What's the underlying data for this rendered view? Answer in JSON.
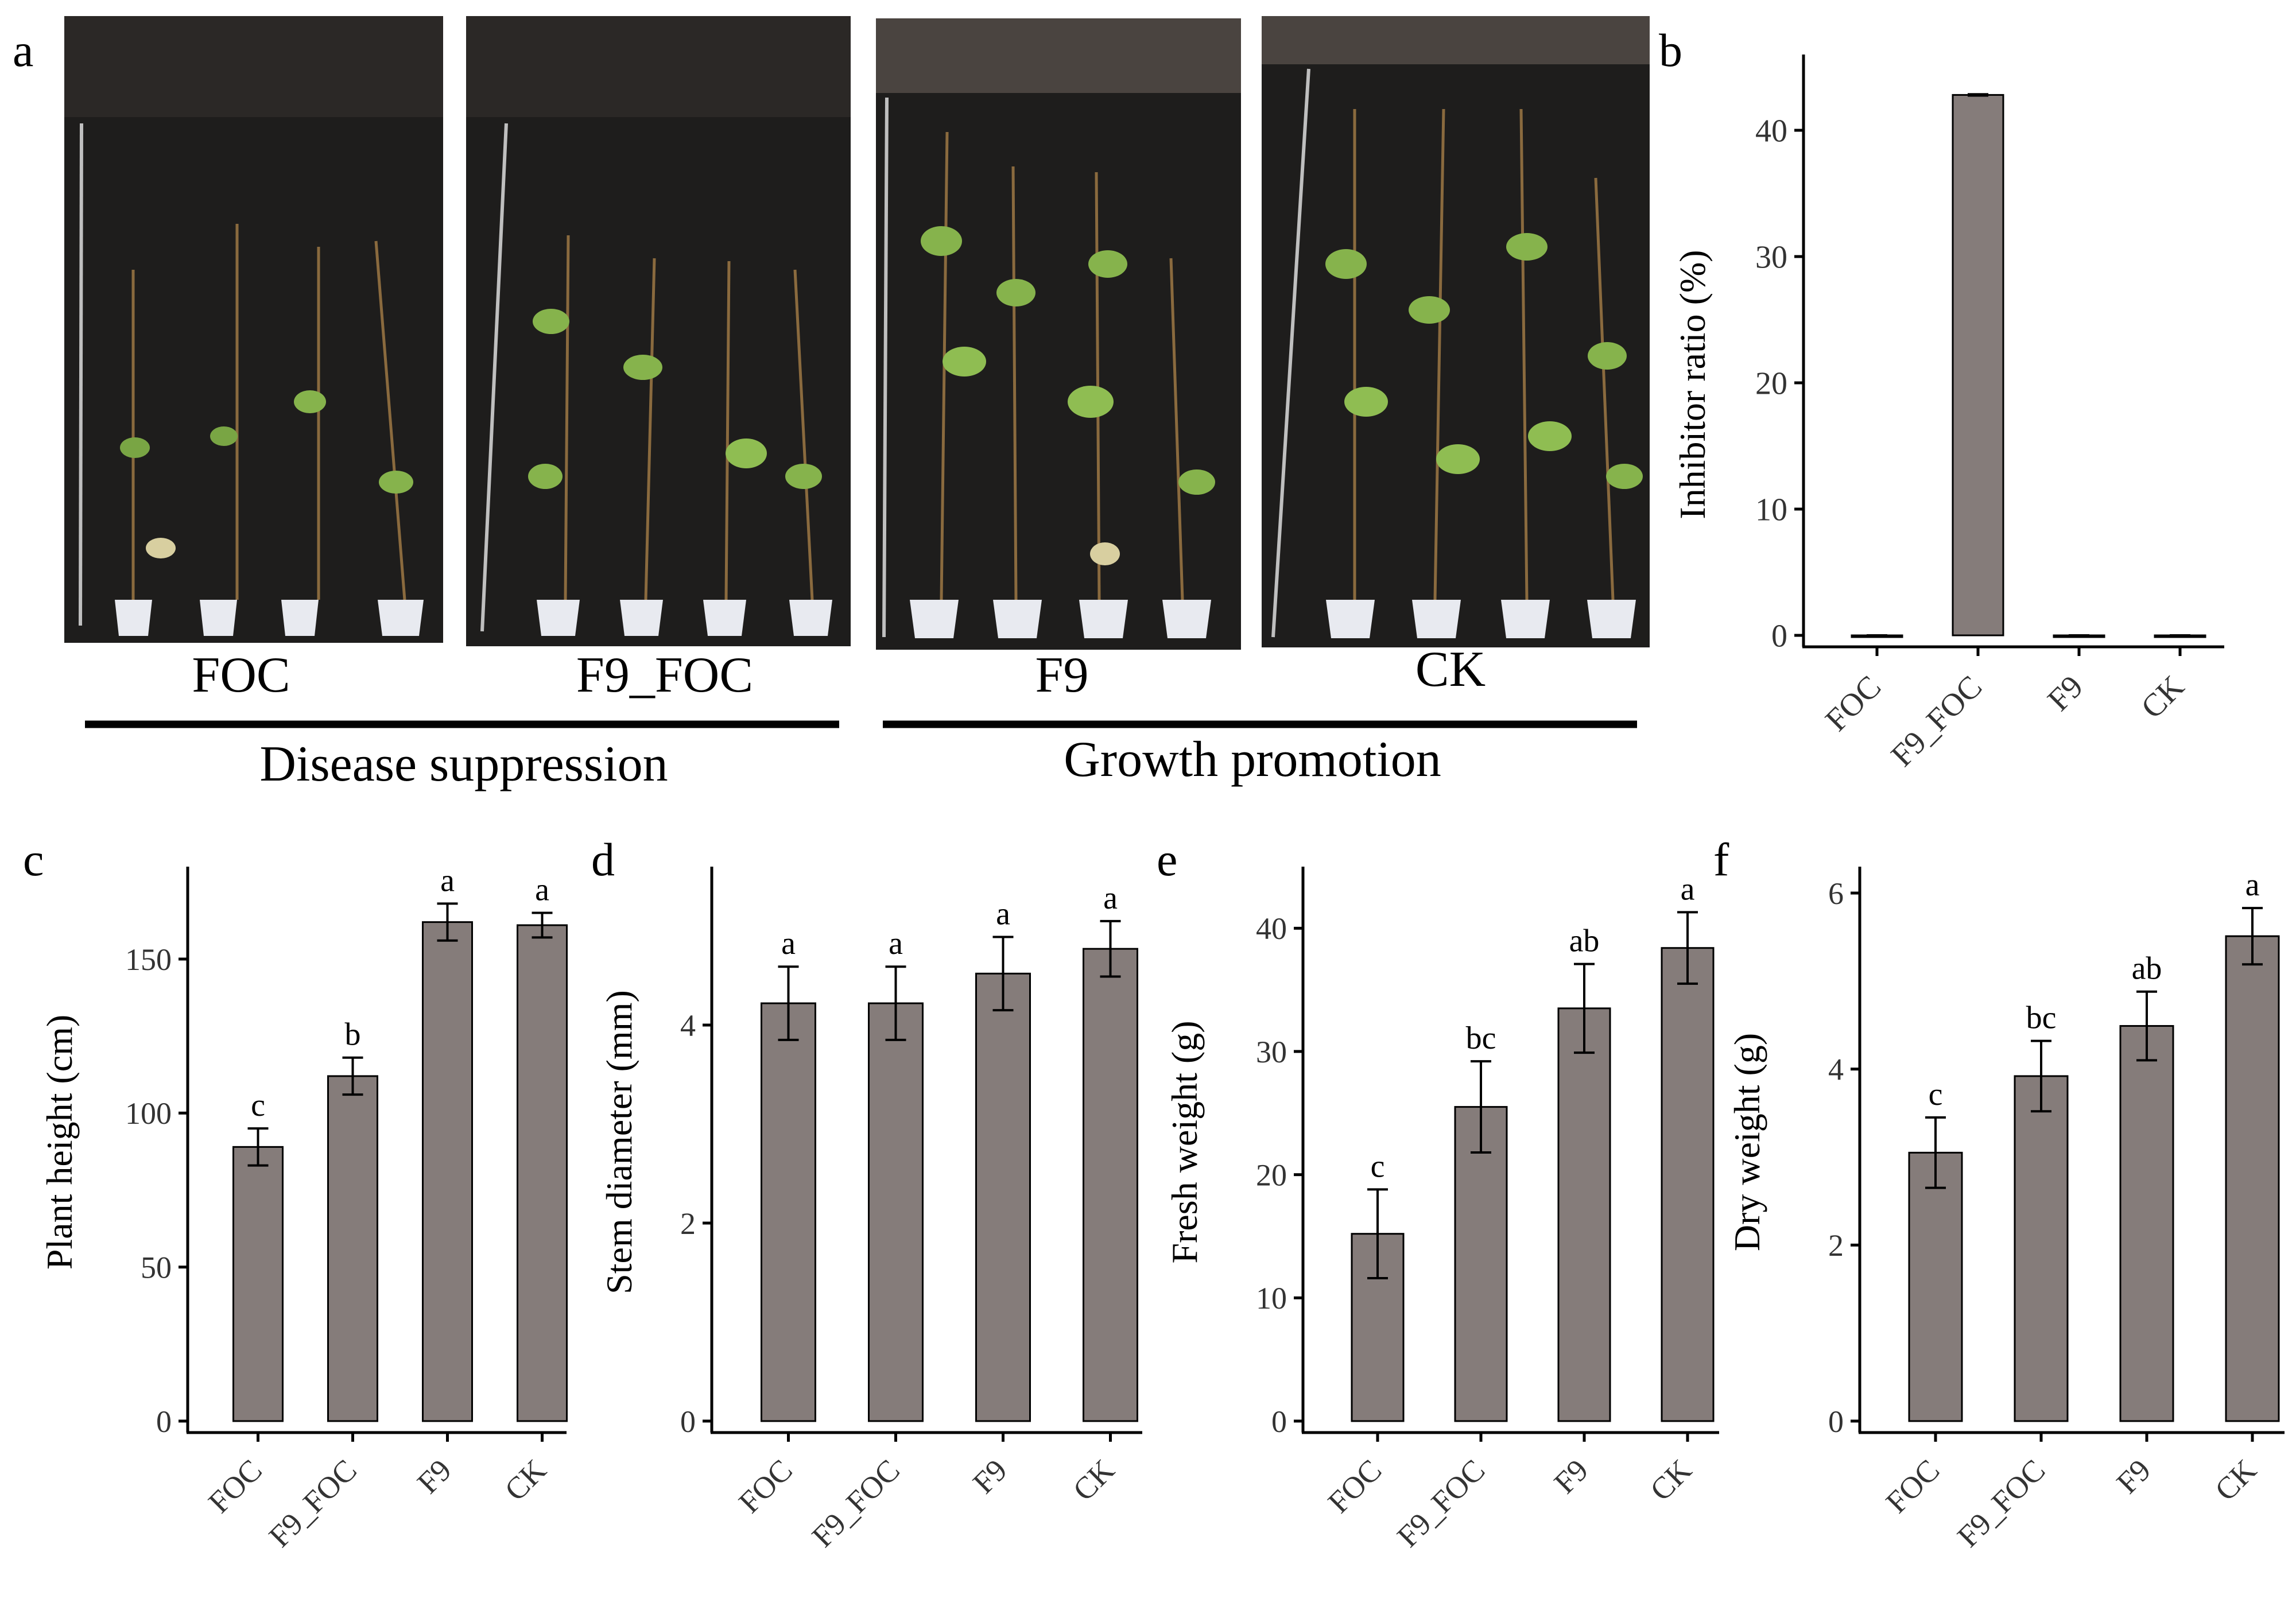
{
  "figure": {
    "panel_letters": [
      "a",
      "b",
      "c",
      "d",
      "e",
      "f"
    ],
    "photo_labels": [
      "FOC",
      "F9_FOC",
      "F9",
      "CK"
    ],
    "group_labels": [
      "Disease suppression",
      "Growth promotion"
    ],
    "bar_color": "#857c7a",
    "photo_background": "#1e1d1c"
  },
  "chart_data": [
    {
      "panel": "b",
      "type": "bar",
      "categories": [
        "FOC",
        "F9_FOC",
        "F9",
        "CK"
      ],
      "values": [
        0,
        42.8,
        0,
        0
      ],
      "errors": [
        0,
        0.05,
        0,
        0
      ],
      "letters": [
        "",
        "",
        "",
        ""
      ],
      "ylabel": "Inhibitor ratio (%)",
      "ylim": [
        0,
        46
      ],
      "yticks": [
        0,
        10,
        20,
        30,
        40
      ]
    },
    {
      "panel": "c",
      "type": "bar",
      "categories": [
        "FOC",
        "F9_FOC",
        "F9",
        "CK"
      ],
      "values": [
        89,
        112,
        162,
        161
      ],
      "errors": [
        6,
        6,
        6,
        4
      ],
      "letters": [
        "c",
        "b",
        "a",
        "a"
      ],
      "ylabel": "Plant height (cm)",
      "ylim": [
        0,
        180
      ],
      "yticks": [
        0,
        50,
        100,
        150
      ]
    },
    {
      "panel": "d",
      "type": "bar",
      "categories": [
        "FOC",
        "F9_FOC",
        "F9",
        "CK"
      ],
      "values": [
        4.22,
        4.22,
        4.52,
        4.77
      ],
      "errors": [
        0.37,
        0.37,
        0.37,
        0.28
      ],
      "letters": [
        "a",
        "a",
        "a",
        "a"
      ],
      "ylabel": "Stem diameter (mm)",
      "ylim": [
        0,
        5.6
      ],
      "yticks": [
        0,
        2,
        4
      ]
    },
    {
      "panel": "e",
      "type": "bar",
      "categories": [
        "FOC",
        "F9_FOC",
        "F9",
        "CK"
      ],
      "values": [
        15.2,
        25.5,
        33.5,
        38.4
      ],
      "errors": [
        3.6,
        3.7,
        3.6,
        2.9
      ],
      "letters": [
        "c",
        "bc",
        "ab",
        "a"
      ],
      "ylabel": "Fresh weight (g)",
      "ylim": [
        0,
        45
      ],
      "yticks": [
        0,
        10,
        20,
        30,
        40
      ]
    },
    {
      "panel": "f",
      "type": "bar",
      "categories": [
        "FOC",
        "F9_FOC",
        "F9",
        "CK"
      ],
      "values": [
        3.05,
        3.92,
        4.49,
        5.51
      ],
      "errors": [
        0.4,
        0.4,
        0.39,
        0.32
      ],
      "letters": [
        "c",
        "bc",
        "ab",
        "a"
      ],
      "ylabel": "Dry weight (g)",
      "ylim": [
        0,
        6.3
      ],
      "yticks": [
        0,
        2,
        4,
        6
      ]
    }
  ]
}
